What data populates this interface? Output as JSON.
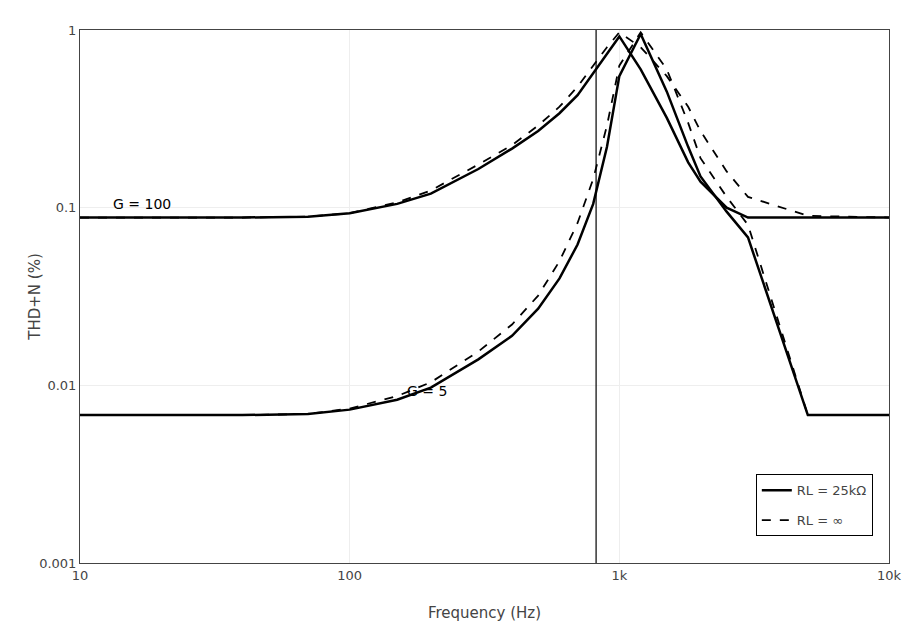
{
  "chart_data": {
    "type": "line",
    "log": true,
    "xlabel": "Frequency (Hz)",
    "ylabel": "THD+N (%)",
    "xlim": [
      10,
      10000
    ],
    "ylim": [
      0.001,
      1
    ],
    "xticks": [
      10,
      100,
      {
        "value": 1000,
        "label": "1k"
      },
      {
        "value": 10000,
        "label": "10k"
      }
    ],
    "yticks": [
      0.001,
      0.01,
      0.1,
      1
    ],
    "grid": true,
    "legend": "lower right",
    "color": "#000000",
    "x": [
      10,
      20,
      40,
      70,
      100,
      150,
      200,
      300,
      400,
      500,
      600,
      700,
      800,
      900,
      1000,
      1200,
      1500,
      1800,
      2000,
      2500,
      3000,
      5000,
      10000
    ],
    "series": [
      {
        "name": "RL = 25kΩ",
        "line_style": "solid",
        "values": [
          0.088,
          0.088,
          0.088,
          0.089,
          0.093,
          0.105,
          0.12,
          0.165,
          0.215,
          0.27,
          0.34,
          0.43,
          0.57,
          0.73,
          0.92,
          0.6,
          0.32,
          0.18,
          0.14,
          0.1,
          0.088,
          0.088,
          0.088
        ]
      },
      {
        "name": "RL = ∞",
        "line_style": "dashed",
        "values": [
          0.088,
          0.088,
          0.088,
          0.089,
          0.093,
          0.107,
          0.125,
          0.175,
          0.225,
          0.29,
          0.37,
          0.48,
          0.63,
          0.8,
          0.97,
          0.8,
          0.55,
          0.37,
          0.27,
          0.16,
          0.115,
          0.09,
          0.088
        ]
      },
      {
        "name": "RL = 25kΩ",
        "line_style": "solid",
        "values": [
          0.0068,
          0.0068,
          0.0068,
          0.0069,
          0.0073,
          0.0083,
          0.0097,
          0.014,
          0.019,
          0.027,
          0.04,
          0.062,
          0.105,
          0.22,
          0.55,
          0.95,
          0.45,
          0.22,
          0.15,
          0.095,
          0.068,
          0.0068,
          0.0068
        ]
      },
      {
        "name": "RL = ∞",
        "line_style": "dashed",
        "values": [
          0.0068,
          0.0068,
          0.0068,
          0.0069,
          0.0074,
          0.0087,
          0.0104,
          0.0155,
          0.022,
          0.032,
          0.05,
          0.082,
          0.145,
          0.29,
          0.63,
          0.97,
          0.6,
          0.3,
          0.19,
          0.115,
          0.08,
          0.0068,
          0.0068
        ]
      }
    ],
    "vline": 820,
    "annotations": [
      {
        "text": "G = 100",
        "x": 13,
        "y": 0.092
      },
      {
        "text": "G = 5",
        "x": 160,
        "y": 0.0082
      }
    ]
  }
}
